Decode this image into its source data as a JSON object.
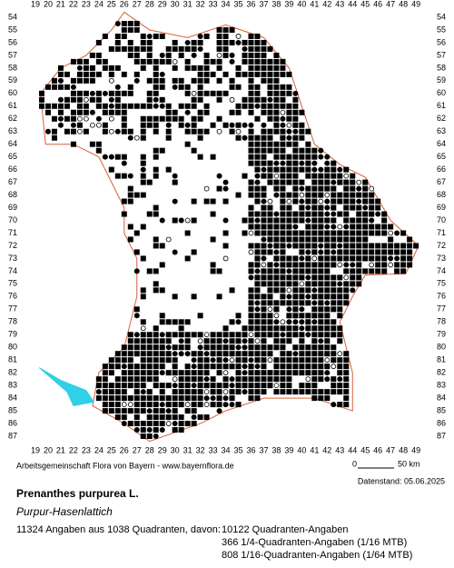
{
  "map": {
    "columns": [
      19,
      20,
      21,
      22,
      23,
      24,
      25,
      26,
      27,
      28,
      29,
      30,
      31,
      32,
      33,
      34,
      35,
      36,
      37,
      38,
      39,
      40,
      41,
      42,
      43,
      44,
      45,
      46,
      47,
      48,
      49
    ],
    "rows": [
      54,
      55,
      56,
      57,
      58,
      59,
      60,
      61,
      62,
      63,
      64,
      65,
      66,
      67,
      68,
      69,
      70,
      71,
      72,
      73,
      74,
      75,
      76,
      77,
      78,
      79,
      80,
      81,
      82,
      83,
      84,
      85,
      86,
      87
    ],
    "credit": "Arbeitsgemeinschaft Flora von Bayern - www.bayernflora.de",
    "scale_start": "0",
    "scale_end": "50 km",
    "date": "Datenstand: 05.06.2025",
    "title": "Prenanthes purpurea L.",
    "subtitle": "Purpur-Hasenlattich",
    "summary": "11324 Angaben aus 1038 Quadranten, davon:",
    "counts": [
      "10122 Quadranten-Angaben",
      "366 1/4-Quadranten-Angaben (1/16 MTB)",
      "808 1/16-Quadranten-Angaben (1/64 MTB)"
    ]
  }
}
